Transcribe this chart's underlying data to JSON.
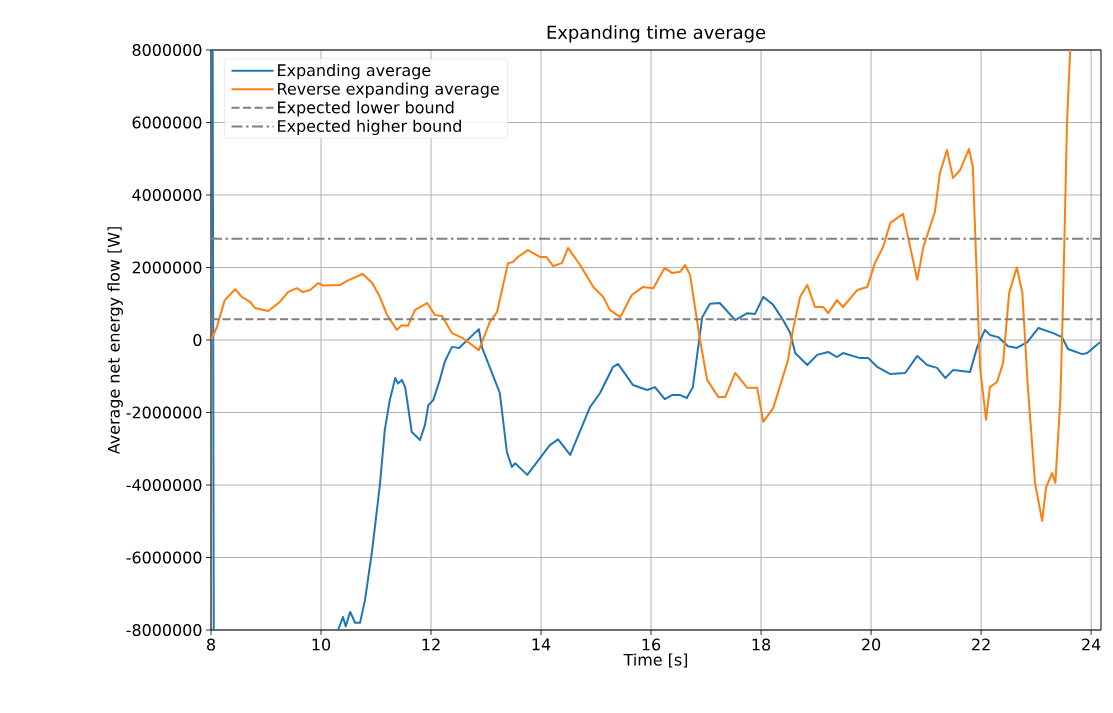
{
  "chart_data": {
    "type": "line",
    "title": "Expanding time average",
    "xlabel": "Time [s]",
    "ylabel": "Average net energy flow [W]",
    "xlim": [
      8,
      24.18
    ],
    "ylim": [
      -8000000,
      8000000
    ],
    "xticks": [
      8,
      10,
      12,
      14,
      16,
      18,
      20,
      22,
      24
    ],
    "yticks": [
      -8000000,
      -6000000,
      -4000000,
      -2000000,
      0,
      2000000,
      4000000,
      6000000,
      8000000
    ],
    "grid": true,
    "legend": "top left",
    "line_style": "solid",
    "marker": "none",
    "series": [
      {
        "name": "Expanding average",
        "color": "#1f77b4",
        "x": [
          8.03,
          8.05,
          9.0,
          10.31,
          10.4,
          10.45,
          10.53,
          10.62,
          10.71,
          10.8,
          10.93,
          11.07,
          11.16,
          11.25,
          11.35,
          11.4,
          11.47,
          11.53,
          11.65,
          11.8,
          11.89,
          11.95,
          12.04,
          12.16,
          12.25,
          12.38,
          12.51,
          12.87,
          12.93,
          13.25,
          13.38,
          13.47,
          13.53,
          13.75,
          13.98,
          14.16,
          14.31,
          14.53,
          14.89,
          15.07,
          15.31,
          15.4,
          15.67,
          15.93,
          16.07,
          16.25,
          16.38,
          16.53,
          16.65,
          16.76,
          16.93,
          17.07,
          17.25,
          17.53,
          17.75,
          17.89,
          18.04,
          18.22,
          18.4,
          18.53,
          18.62,
          18.84,
          19.02,
          19.22,
          19.38,
          19.49,
          19.8,
          19.95,
          20.11,
          20.35,
          20.62,
          20.84,
          21.02,
          21.2,
          21.35,
          21.49,
          21.8,
          21.93,
          22.07,
          22.16,
          22.31,
          22.49,
          22.65,
          22.84,
          23.04,
          23.31,
          23.47,
          23.58,
          23.84,
          23.93,
          24.16
        ],
        "values": [
          8000000,
          -8000000,
          null,
          -8000000,
          -7640000,
          -7900000,
          -7500000,
          -7800000,
          -7800000,
          -7170000,
          -5800000,
          -4000000,
          -2480000,
          -1660000,
          -1050000,
          -1200000,
          -1100000,
          -1300000,
          -2540000,
          -2760000,
          -2340000,
          -1800000,
          -1660000,
          -1100000,
          -600000,
          -190000,
          -220000,
          300000,
          -220000,
          -1460000,
          -3100000,
          -3500000,
          -3400000,
          -3720000,
          -3260000,
          -2900000,
          -2740000,
          -3170000,
          -1850000,
          -1470000,
          -740000,
          -660000,
          -1240000,
          -1380000,
          -1300000,
          -1630000,
          -1520000,
          -1520000,
          -1600000,
          -1300000,
          630000,
          1000000,
          1020000,
          550000,
          740000,
          720000,
          1190000,
          970000,
          550000,
          190000,
          -360000,
          -690000,
          -410000,
          -330000,
          -470000,
          -360000,
          -500000,
          -500000,
          -740000,
          -940000,
          -910000,
          -440000,
          -690000,
          -770000,
          -1050000,
          -830000,
          -880000,
          -190000,
          280000,
          140000,
          80000,
          -170000,
          -220000,
          -60000,
          330000,
          190000,
          80000,
          -250000,
          -390000,
          -360000,
          -60000
        ]
      },
      {
        "name": "Reverse expanding average",
        "color": "#ff7f0e",
        "x": [
          8.0,
          8.1,
          8.25,
          8.44,
          8.56,
          8.71,
          8.8,
          9.04,
          9.25,
          9.4,
          9.56,
          9.67,
          9.8,
          9.95,
          10.04,
          10.35,
          10.5,
          10.76,
          10.93,
          11.07,
          11.2,
          11.38,
          11.47,
          11.58,
          11.71,
          11.93,
          12.07,
          12.2,
          12.38,
          12.58,
          12.87,
          13.07,
          13.2,
          13.4,
          13.49,
          13.58,
          13.76,
          13.98,
          14.1,
          14.22,
          14.38,
          14.49,
          14.71,
          14.95,
          15.13,
          15.25,
          15.44,
          15.65,
          15.85,
          16.04,
          16.25,
          16.38,
          16.53,
          16.62,
          16.71,
          16.89,
          17.02,
          17.22,
          17.35,
          17.53,
          17.75,
          17.93,
          18.04,
          18.22,
          18.38,
          18.49,
          18.58,
          18.71,
          18.84,
          18.98,
          19.13,
          19.22,
          19.38,
          19.49,
          19.75,
          19.93,
          20.07,
          20.22,
          20.35,
          20.58,
          20.84,
          20.95,
          21.16,
          21.25,
          21.38,
          21.49,
          21.62,
          21.78,
          21.85,
          21.98,
          22.09,
          22.16,
          22.29,
          22.4,
          22.51,
          22.65,
          22.75,
          22.85,
          22.98,
          23.11,
          23.18,
          23.29,
          23.35,
          23.44,
          23.49,
          23.56,
          23.58,
          23.62
        ],
        "values": [
          0,
          330000,
          1100000,
          1400000,
          1190000,
          1050000,
          880000,
          800000,
          1050000,
          1320000,
          1430000,
          1320000,
          1380000,
          1570000,
          1500000,
          1520000,
          1650000,
          1820000,
          1570000,
          1190000,
          690000,
          280000,
          410000,
          390000,
          830000,
          1020000,
          690000,
          660000,
          190000,
          50000,
          -280000,
          500000,
          770000,
          2120000,
          2150000,
          2290000,
          2480000,
          2290000,
          2290000,
          2040000,
          2120000,
          2540000,
          2070000,
          1460000,
          1190000,
          830000,
          630000,
          1240000,
          1460000,
          1430000,
          1990000,
          1850000,
          1880000,
          2070000,
          1790000,
          0,
          -1100000,
          -1570000,
          -1570000,
          -910000,
          -1320000,
          -1320000,
          -2260000,
          -1880000,
          -1100000,
          -550000,
          280000,
          1190000,
          1520000,
          910000,
          910000,
          740000,
          1100000,
          910000,
          1380000,
          1460000,
          2120000,
          2570000,
          3230000,
          3480000,
          1660000,
          2570000,
          3530000,
          4600000,
          5240000,
          4470000,
          4690000,
          5270000,
          4770000,
          -740000,
          -2200000,
          -1300000,
          -1160000,
          -630000,
          1300000,
          2000000,
          1300000,
          -1300000,
          -3940000,
          -4990000,
          -4080000,
          -3670000,
          -3940000,
          -1660000,
          1100000,
          5880000,
          6620000,
          8000000
        ]
      }
    ],
    "ref_lines": [
      {
        "axis": "y",
        "value": 570000,
        "label": "Expected lower bound",
        "color": "#808080",
        "line_style": "dashed"
      },
      {
        "axis": "y",
        "value": 2790000,
        "label": "Expected higher bound",
        "color": "#808080",
        "line_style": "dashdot"
      }
    ]
  }
}
